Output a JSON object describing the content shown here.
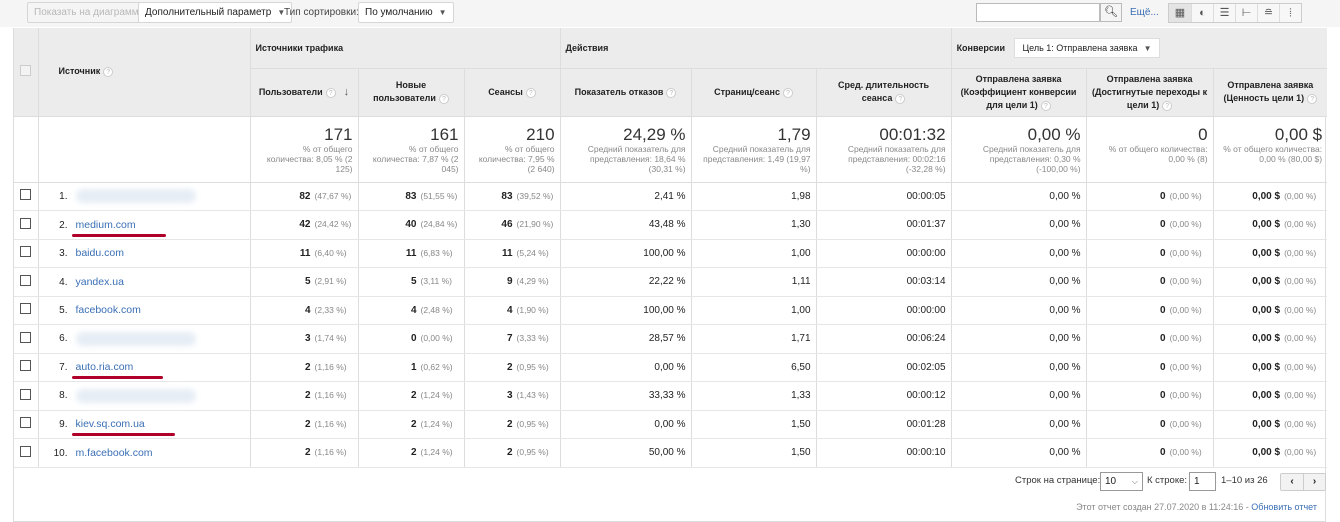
{
  "toolbar": {
    "show_on_chart": "Показать на диаграмме",
    "secondary_dim": "Дополнительный параметр",
    "sort_type_label": "Тип сортировки:",
    "sort_type_value": "По умолчанию",
    "more": "Ещё..."
  },
  "header": {
    "source": "Источник",
    "group_traffic": "Источники трафика",
    "group_actions": "Действия",
    "group_conversions": "Конверсии",
    "goal_select": "Цель 1: Отправлена заявка",
    "columns": [
      "Пользователи",
      "Новые пользователи",
      "Сеансы",
      "Показатель отказов",
      "Страниц/сеанс",
      "Сред. длительность сеанса",
      "Отправлена заявка (Коэффициент конверсии для цели 1)",
      "Отправлена заявка (Достигнутые переходы к цели 1)",
      "Отправлена заявка (Ценность цели 1)"
    ]
  },
  "totals": [
    {
      "value": "171",
      "sub": "% от общего количества: 8,05 % (2 125)"
    },
    {
      "value": "161",
      "sub": "% от общего количества: 7,87 % (2 045)"
    },
    {
      "value": "210",
      "sub": "% от общего количества: 7,95 % (2 640)"
    },
    {
      "value": "24,29 %",
      "sub": "Средний показатель для представления: 18,64 % (30,31 %)"
    },
    {
      "value": "1,79",
      "sub": "Средний показатель для представления: 1,49 (19,97 %)"
    },
    {
      "value": "00:01:32",
      "sub": "Средний показатель для представления: 00:02:16 (-32,28 %)"
    },
    {
      "value": "0,00 %",
      "sub": "Средний показатель для представления: 0,30 % (-100,00 %)"
    },
    {
      "value": "0",
      "sub": "% от общего количества: 0,00 % (8)"
    },
    {
      "value": "0,00 $",
      "sub": "% от общего количества: 0,00 % (80,00 $)"
    }
  ],
  "rows": [
    {
      "n": "1.",
      "source": null,
      "blurred": true,
      "u": "82",
      "up": "(47,67 %)",
      "nu": "83",
      "nup": "(51,55 %)",
      "s": "83",
      "sp": "(39,52 %)",
      "br": "2,41 %",
      "ps": "1,98",
      "d": "00:00:05"
    },
    {
      "n": "2.",
      "source": "medium.com",
      "underlined": true,
      "u": "42",
      "up": "(24,42 %)",
      "nu": "40",
      "nup": "(24,84 %)",
      "s": "46",
      "sp": "(21,90 %)",
      "br": "43,48 %",
      "ps": "1,30",
      "d": "00:01:37"
    },
    {
      "n": "3.",
      "source": "baidu.com",
      "u": "11",
      "up": "(6,40 %)",
      "nu": "11",
      "nup": "(6,83 %)",
      "s": "11",
      "sp": "(5,24 %)",
      "br": "100,00 %",
      "ps": "1,00",
      "d": "00:00:00"
    },
    {
      "n": "4.",
      "source": "yandex.ua",
      "u": "5",
      "up": "(2,91 %)",
      "nu": "5",
      "nup": "(3,11 %)",
      "s": "9",
      "sp": "(4,29 %)",
      "br": "22,22 %",
      "ps": "1,11",
      "d": "00:03:14"
    },
    {
      "n": "5.",
      "source": "facebook.com",
      "u": "4",
      "up": "(2,33 %)",
      "nu": "4",
      "nup": "(2,48 %)",
      "s": "4",
      "sp": "(1,90 %)",
      "br": "100,00 %",
      "ps": "1,00",
      "d": "00:00:00"
    },
    {
      "n": "6.",
      "source": null,
      "blurred": true,
      "u": "3",
      "up": "(1,74 %)",
      "nu": "0",
      "nup": "(0,00 %)",
      "s": "7",
      "sp": "(3,33 %)",
      "br": "28,57 %",
      "ps": "1,71",
      "d": "00:06:24"
    },
    {
      "n": "7.",
      "source": "auto.ria.com",
      "underlined": true,
      "u": "2",
      "up": "(1,16 %)",
      "nu": "1",
      "nup": "(0,62 %)",
      "s": "2",
      "sp": "(0,95 %)",
      "br": "0,00 %",
      "ps": "6,50",
      "d": "00:02:05"
    },
    {
      "n": "8.",
      "source": null,
      "blurred": true,
      "u": "2",
      "up": "(1,16 %)",
      "nu": "2",
      "nup": "(1,24 %)",
      "s": "3",
      "sp": "(1,43 %)",
      "br": "33,33 %",
      "ps": "1,33",
      "d": "00:00:12"
    },
    {
      "n": "9.",
      "source": "kiev.sq.com.ua",
      "underlined": true,
      "u": "2",
      "up": "(1,16 %)",
      "nu": "2",
      "nup": "(1,24 %)",
      "s": "2",
      "sp": "(0,95 %)",
      "br": "0,00 %",
      "ps": "1,50",
      "d": "00:01:28"
    },
    {
      "n": "10.",
      "source": "m.facebook.com",
      "u": "2",
      "up": "(1,16 %)",
      "nu": "2",
      "nup": "(1,24 %)",
      "s": "2",
      "sp": "(0,95 %)",
      "br": "50,00 %",
      "ps": "1,50",
      "d": "00:00:10"
    }
  ],
  "row_conv": {
    "cr": "0,00 %",
    "gc": "0",
    "gcp": "(0,00 %)",
    "gv": "0,00 $",
    "gvp": "(0,00 %)"
  },
  "pagination": {
    "rows_label": "Строк на странице:",
    "rows_value": "10",
    "goto_label": "К строке:",
    "goto_value": "1",
    "range": "1–10 из 26",
    "prev": "‹",
    "next": "›"
  },
  "report": {
    "created": "Этот отчет создан 27.07.2020 в 11:24:16 - ",
    "refresh": "Обновить отчет"
  },
  "colors": {
    "link": "#3a6fb5",
    "underline": "#b0002a"
  }
}
